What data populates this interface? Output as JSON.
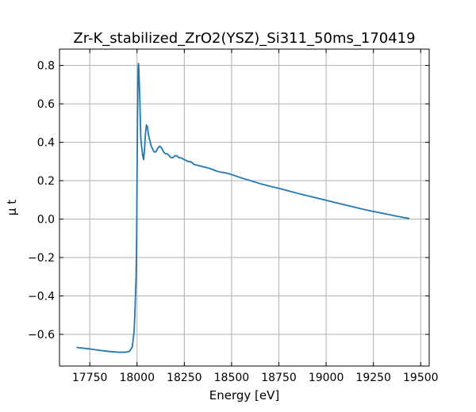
{
  "chart_data": {
    "type": "line",
    "title": "Zr-K_stabilized_ZrO2(YSZ)_Si311_50ms_170419",
    "xlabel": "Energy [eV]",
    "ylabel": "μ t",
    "xlim": [
      17590,
      19545
    ],
    "ylim": [
      -0.765,
      0.885
    ],
    "xticks": [
      17750,
      18000,
      18250,
      18500,
      18750,
      19000,
      19250,
      19500
    ],
    "yticks": [
      -0.6,
      -0.4,
      -0.2,
      0.0,
      0.2,
      0.4,
      0.6,
      0.8
    ],
    "xtick_labels": [
      "17750",
      "18000",
      "18250",
      "18500",
      "18750",
      "19000",
      "19250",
      "19500"
    ],
    "ytick_labels": [
      "−0.6",
      "−0.4",
      "−0.2",
      "0.0",
      "0.2",
      "0.4",
      "0.6",
      "0.8"
    ],
    "grid": true,
    "color": "#1f77b4",
    "series": [
      {
        "x": [
          17680,
          17750,
          17800,
          17850,
          17900,
          17940,
          17960,
          17975,
          17985,
          17990,
          17995,
          17998,
          18000,
          18002,
          18004,
          18006,
          18008,
          18010,
          18014,
          18020,
          18025,
          18030,
          18035,
          18040,
          18045,
          18050,
          18055,
          18060,
          18065,
          18070,
          18075,
          18080,
          18090,
          18100,
          18110,
          18120,
          18130,
          18140,
          18150,
          18160,
          18170,
          18180,
          18190,
          18200,
          18210,
          18220,
          18230,
          18240,
          18250,
          18260,
          18270,
          18280,
          18290,
          18300,
          18320,
          18340,
          18360,
          18380,
          18400,
          18420,
          18440,
          18460,
          18480,
          18500,
          18550,
          18600,
          18650,
          18700,
          18750,
          18800,
          18850,
          18900,
          18950,
          19000,
          19050,
          19100,
          19150,
          19200,
          19250,
          19300,
          19350,
          19400,
          19440
        ],
        "y": [
          -0.668,
          -0.676,
          -0.683,
          -0.689,
          -0.693,
          -0.693,
          -0.688,
          -0.665,
          -0.58,
          -0.45,
          -0.3,
          -0.1,
          0.2,
          0.45,
          0.65,
          0.79,
          0.81,
          0.77,
          0.65,
          0.42,
          0.37,
          0.33,
          0.31,
          0.37,
          0.45,
          0.49,
          0.48,
          0.44,
          0.42,
          0.4,
          0.38,
          0.37,
          0.35,
          0.35,
          0.37,
          0.38,
          0.37,
          0.35,
          0.34,
          0.34,
          0.33,
          0.32,
          0.32,
          0.33,
          0.33,
          0.32,
          0.32,
          0.315,
          0.31,
          0.305,
          0.3,
          0.3,
          0.295,
          0.285,
          0.28,
          0.275,
          0.27,
          0.265,
          0.258,
          0.25,
          0.245,
          0.242,
          0.238,
          0.232,
          0.215,
          0.2,
          0.185,
          0.172,
          0.16,
          0.147,
          0.134,
          0.122,
          0.11,
          0.098,
          0.086,
          0.074,
          0.062,
          0.05,
          0.04,
          0.03,
          0.02,
          0.01,
          0.003
        ]
      }
    ]
  }
}
